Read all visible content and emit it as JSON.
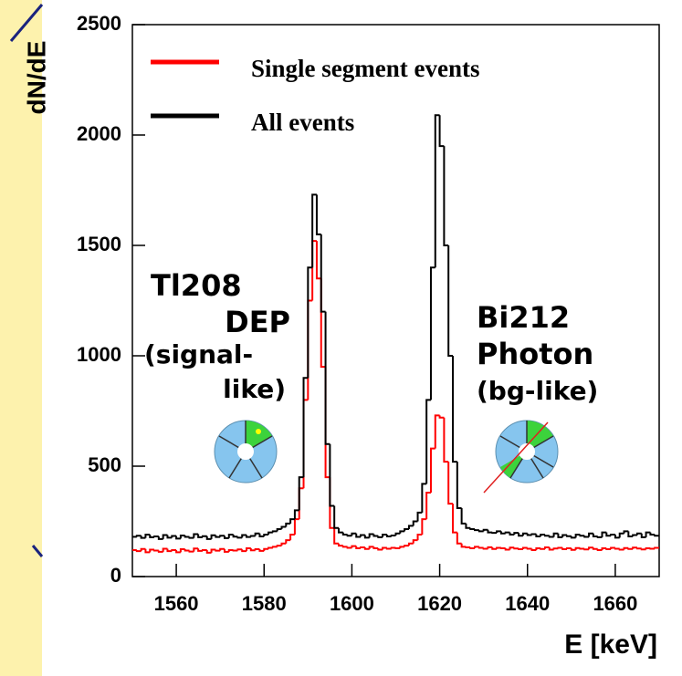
{
  "chart_data": {
    "type": "histogram",
    "y_label": "dN/dE",
    "x_label": "E [keV]",
    "annotations": [
      "Tl208",
      "DEP",
      "(signal-",
      "like)",
      "Bi212",
      "Photon",
      "(bg-like)"
    ],
    "bins": [
      1550,
      1551,
      1552,
      1553,
      1554,
      1555,
      1556,
      1557,
      1558,
      1559,
      1560,
      1561,
      1562,
      1563,
      1564,
      1565,
      1566,
      1567,
      1568,
      1569,
      1570,
      1571,
      1572,
      1573,
      1574,
      1575,
      1576,
      1577,
      1578,
      1579,
      1580,
      1581,
      1582,
      1583,
      1584,
      1585,
      1586,
      1587,
      1588,
      1589,
      1590,
      1591,
      1592,
      1593,
      1594,
      1595,
      1596,
      1597,
      1598,
      1599,
      1600,
      1601,
      1602,
      1603,
      1604,
      1605,
      1606,
      1607,
      1608,
      1609,
      1610,
      1611,
      1612,
      1613,
      1614,
      1615,
      1616,
      1617,
      1618,
      1619,
      1620,
      1621,
      1622,
      1623,
      1624,
      1625,
      1626,
      1627,
      1628,
      1629,
      1630,
      1631,
      1632,
      1633,
      1634,
      1635,
      1636,
      1637,
      1638,
      1639,
      1640,
      1641,
      1642,
      1643,
      1644,
      1645,
      1646,
      1647,
      1648,
      1649,
      1650,
      1651,
      1652,
      1653,
      1654,
      1655,
      1656,
      1657,
      1658,
      1659,
      1660,
      1661,
      1662,
      1663,
      1664,
      1665,
      1666,
      1667,
      1668,
      1669,
      1670
    ],
    "series": [
      {
        "name": "Single segment events",
        "color": "#ff0000",
        "values": [
          120,
          115,
          125,
          110,
          122,
          118,
          112,
          126,
          115,
          120,
          110,
          124,
          118,
          113,
          127,
          116,
          120,
          108,
          122,
          117,
          125,
          112,
          120,
          118,
          123,
          115,
          128,
          119,
          124,
          116,
          125,
          130,
          135,
          140,
          150,
          165,
          190,
          260,
          400,
          800,
          1250,
          1520,
          1350,
          950,
          450,
          220,
          150,
          140,
          135,
          130,
          138,
          128,
          132,
          125,
          135,
          128,
          122,
          130,
          126,
          130,
          128,
          135,
          140,
          150,
          165,
          190,
          260,
          380,
          580,
          730,
          720,
          520,
          330,
          200,
          150,
          135,
          132,
          128,
          135,
          130,
          126,
          133,
          125,
          130,
          128,
          122,
          131,
          127,
          124,
          130,
          126,
          120,
          128,
          125,
          132,
          122,
          127,
          130,
          124,
          128,
          121,
          129,
          126,
          123,
          131,
          125,
          120,
          128,
          124,
          130,
          126,
          122,
          129,
          125,
          131,
          127,
          123,
          128,
          126,
          130
        ]
      },
      {
        "name": "All events",
        "color": "#000000",
        "values": [
          180,
          185,
          175,
          190,
          178,
          182,
          170,
          188,
          176,
          184,
          172,
          186,
          180,
          175,
          192,
          178,
          183,
          170,
          187,
          179,
          185,
          174,
          190,
          181,
          176,
          188,
          179,
          184,
          195,
          182,
          190,
          200,
          205,
          215,
          225,
          240,
          260,
          300,
          450,
          900,
          1400,
          1730,
          1550,
          1200,
          600,
          320,
          220,
          200,
          190,
          185,
          195,
          180,
          188,
          176,
          192,
          184,
          178,
          190,
          182,
          186,
          195,
          205,
          215,
          230,
          250,
          290,
          420,
          800,
          1400,
          2090,
          1950,
          1500,
          1000,
          520,
          310,
          240,
          220,
          215,
          210,
          205,
          212,
          200,
          198,
          205,
          195,
          200,
          190,
          198,
          185,
          195,
          188,
          192,
          182,
          190,
          185,
          180,
          195,
          178,
          188,
          183,
          176,
          190,
          185,
          180,
          195,
          182,
          178,
          200,
          185,
          190,
          176,
          195,
          205,
          182,
          188,
          195,
          178,
          200,
          190,
          185
        ]
      }
    ],
    "xlim": [
      1550,
      1670
    ],
    "ylim": [
      0,
      2500
    ],
    "xticks": [
      1560,
      1580,
      1600,
      1620,
      1640,
      1660
    ],
    "yticks": [
      0,
      500,
      1000,
      1500,
      2000,
      2500
    ]
  }
}
